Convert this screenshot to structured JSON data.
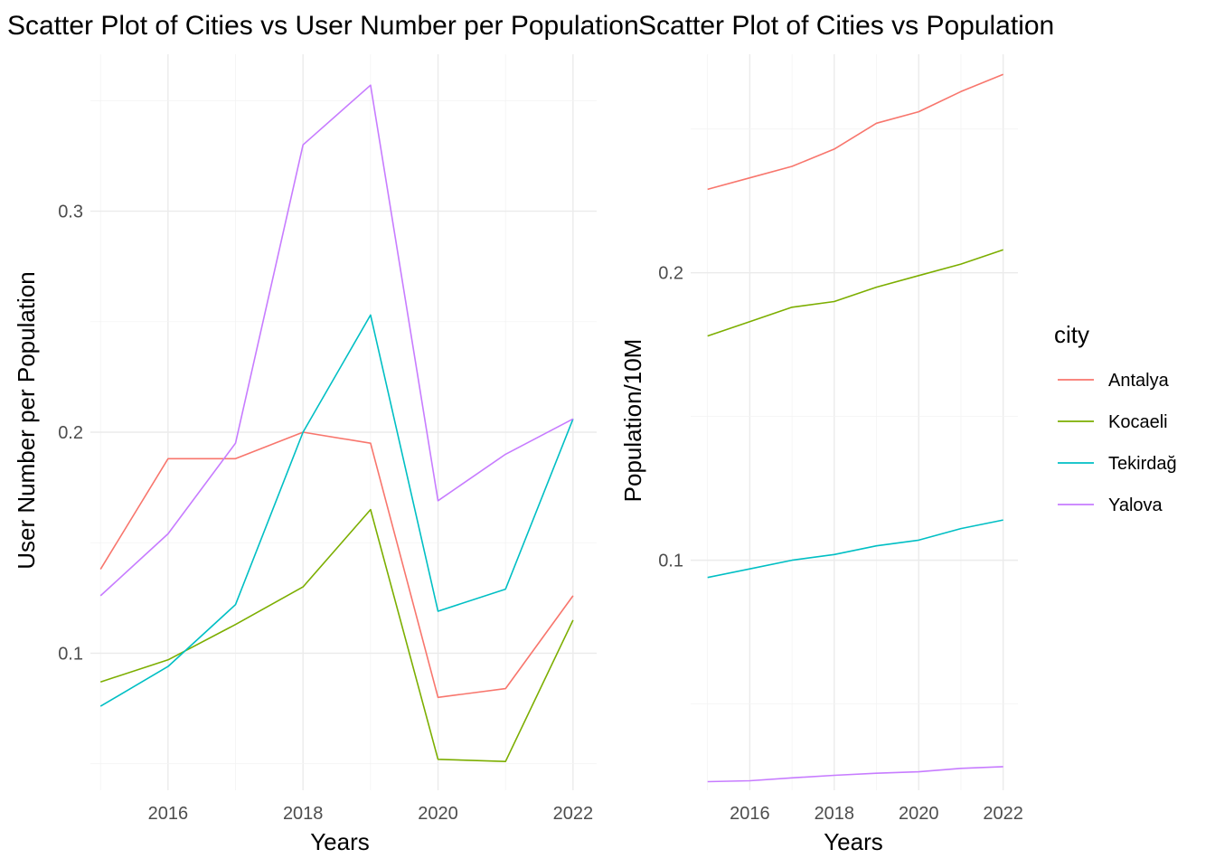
{
  "chart_data": [
    {
      "type": "line",
      "title": "Scatter Plot of Cities vs User Number per Population",
      "xlabel": "Years",
      "ylabel": "User Number per Population",
      "x": [
        2015,
        2016,
        2017,
        2018,
        2019,
        2020,
        2021,
        2022
      ],
      "xlim": [
        2014.85,
        2022.35
      ],
      "ylim": [
        0.038,
        0.371
      ],
      "xticks": [
        "2016",
        "2018",
        "2020",
        "2022"
      ],
      "yticks": [
        "0.1",
        "0.2",
        "0.3"
      ],
      "grid": true,
      "series": [
        {
          "name": "Antalya",
          "values": [
            0.138,
            0.188,
            0.188,
            0.2,
            0.195,
            0.08,
            0.084,
            0.126
          ]
        },
        {
          "name": "Kocaeli",
          "values": [
            0.087,
            0.097,
            0.113,
            0.13,
            0.165,
            0.052,
            0.051,
            0.115
          ]
        },
        {
          "name": "Tekirdağ",
          "values": [
            0.076,
            0.094,
            0.122,
            0.2,
            0.253,
            0.119,
            0.129,
            0.206
          ]
        },
        {
          "name": "Yalova",
          "values": [
            0.126,
            0.154,
            0.195,
            0.33,
            0.357,
            0.169,
            0.19,
            0.206
          ]
        }
      ]
    },
    {
      "type": "line",
      "title": "Scatter Plot of Cities vs Population",
      "xlabel": "Years",
      "ylabel": "Population/10M",
      "x": [
        2015,
        2016,
        2017,
        2018,
        2019,
        2020,
        2021,
        2022
      ],
      "xlim": [
        2014.6,
        2022.35
      ],
      "ylim": [
        0.02,
        0.276
      ],
      "xticks": [
        "2016",
        "2018",
        "2020",
        "2022"
      ],
      "yticks": [
        "0.1",
        "0.2"
      ],
      "grid": true,
      "series": [
        {
          "name": "Antalya",
          "values": [
            0.229,
            0.233,
            0.237,
            0.243,
            0.252,
            0.256,
            0.263,
            0.269
          ]
        },
        {
          "name": "Kocaeli",
          "values": [
            0.178,
            0.183,
            0.188,
            0.19,
            0.195,
            0.199,
            0.203,
            0.208
          ]
        },
        {
          "name": "Tekirdağ",
          "values": [
            0.094,
            0.097,
            0.1,
            0.102,
            0.105,
            0.107,
            0.111,
            0.114
          ]
        },
        {
          "name": "Yalova",
          "values": [
            0.023,
            0.0233,
            0.0243,
            0.0252,
            0.0259,
            0.0264,
            0.0276,
            0.0282
          ]
        }
      ]
    }
  ],
  "legend": {
    "title": "city",
    "position": "right",
    "items": [
      {
        "label": "Antalya",
        "color": "#F8766D"
      },
      {
        "label": "Kocaeli",
        "color": "#7CAE00"
      },
      {
        "label": "Tekirdağ",
        "color": "#00BFC4"
      },
      {
        "label": "Yalova",
        "color": "#C77CFF"
      }
    ]
  }
}
